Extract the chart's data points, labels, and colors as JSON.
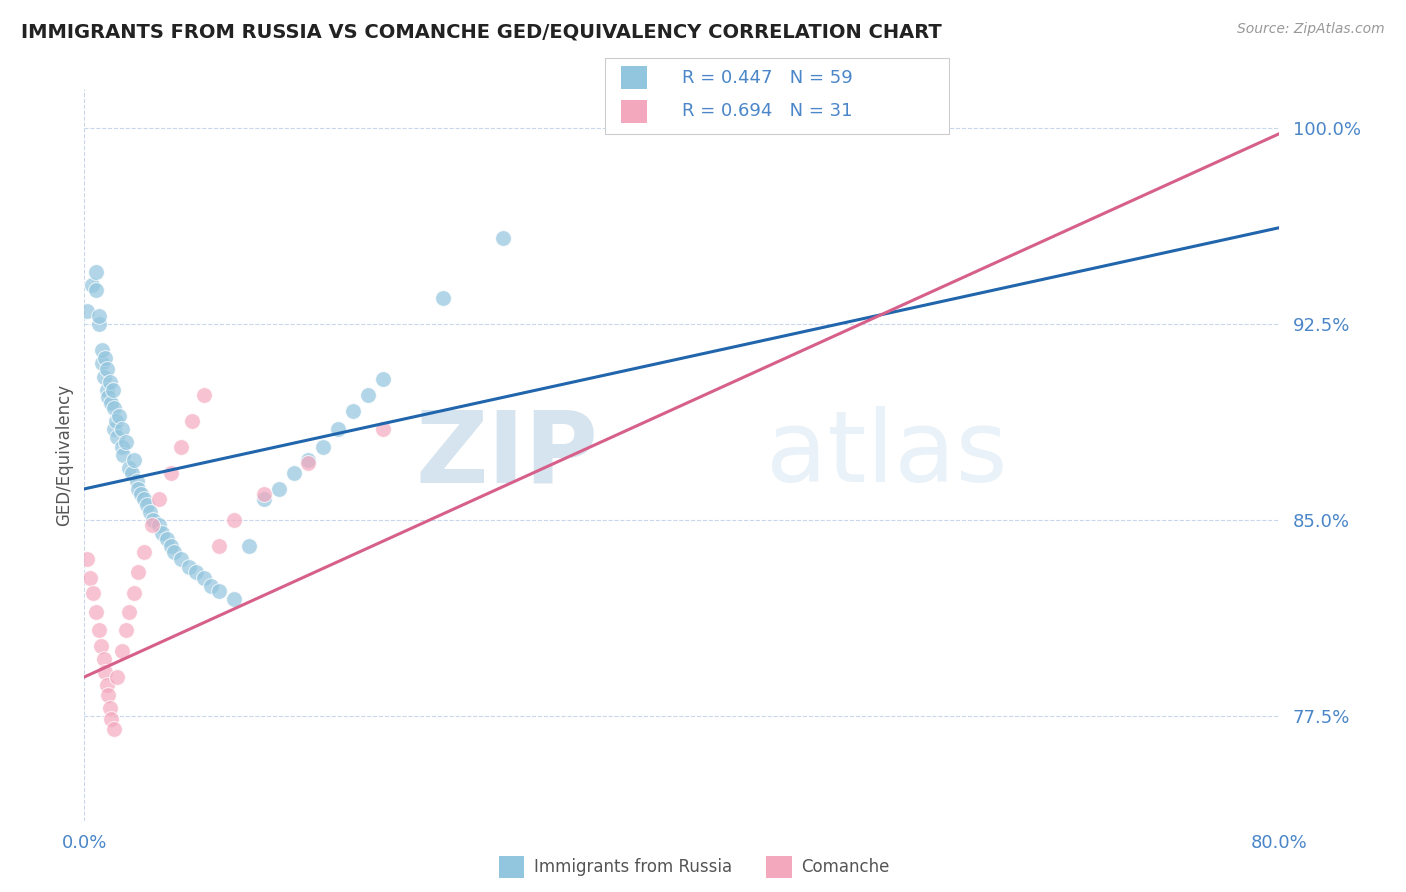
{
  "title": "IMMIGRANTS FROM RUSSIA VS COMANCHE GED/EQUIVALENCY CORRELATION CHART",
  "source": "Source: ZipAtlas.com",
  "ylabel": "GED/Equivalency",
  "xmin": 0.0,
  "xmax": 0.8,
  "ymin": 0.735,
  "ymax": 1.015,
  "yticks": [
    0.775,
    0.85,
    0.925,
    1.0
  ],
  "ytick_labels": [
    "77.5%",
    "85.0%",
    "92.5%",
    "100.0%"
  ],
  "xticks": [
    0.0,
    0.8
  ],
  "xtick_labels": [
    "0.0%",
    "80.0%"
  ],
  "legend_r1": "R = 0.447",
  "legend_n1": "N = 59",
  "legend_r2": "R = 0.694",
  "legend_n2": "N = 31",
  "color_blue": "#92c5de",
  "color_pink": "#f4a8be",
  "line_color_blue": "#2166ac",
  "line_color_pink": "#d6608a",
  "title_color": "#222222",
  "axis_color": "#4a86c8",
  "watermark_zip": "ZIP",
  "watermark_atlas": "atlas",
  "blue_scatter_x": [
    0.002,
    0.005,
    0.008,
    0.008,
    0.01,
    0.01,
    0.012,
    0.012,
    0.013,
    0.014,
    0.015,
    0.015,
    0.016,
    0.017,
    0.018,
    0.019,
    0.02,
    0.02,
    0.021,
    0.022,
    0.023,
    0.025,
    0.025,
    0.026,
    0.028,
    0.03,
    0.032,
    0.033,
    0.035,
    0.036,
    0.038,
    0.04,
    0.042,
    0.044,
    0.046,
    0.05,
    0.052,
    0.055,
    0.058,
    0.06,
    0.065,
    0.07,
    0.075,
    0.08,
    0.085,
    0.09,
    0.1,
    0.11,
    0.12,
    0.13,
    0.14,
    0.15,
    0.16,
    0.17,
    0.18,
    0.19,
    0.2,
    0.24,
    0.28
  ],
  "blue_scatter_y": [
    0.93,
    0.94,
    0.938,
    0.945,
    0.925,
    0.928,
    0.91,
    0.915,
    0.905,
    0.912,
    0.9,
    0.908,
    0.897,
    0.903,
    0.895,
    0.9,
    0.885,
    0.893,
    0.888,
    0.882,
    0.89,
    0.878,
    0.885,
    0.875,
    0.88,
    0.87,
    0.868,
    0.873,
    0.865,
    0.862,
    0.86,
    0.858,
    0.856,
    0.853,
    0.85,
    0.848,
    0.845,
    0.843,
    0.84,
    0.838,
    0.835,
    0.832,
    0.83,
    0.828,
    0.825,
    0.823,
    0.82,
    0.84,
    0.858,
    0.862,
    0.868,
    0.873,
    0.878,
    0.885,
    0.892,
    0.898,
    0.904,
    0.935,
    0.958
  ],
  "pink_scatter_x": [
    0.002,
    0.004,
    0.006,
    0.008,
    0.01,
    0.011,
    0.013,
    0.014,
    0.015,
    0.016,
    0.017,
    0.018,
    0.02,
    0.022,
    0.025,
    0.028,
    0.03,
    0.033,
    0.036,
    0.04,
    0.045,
    0.05,
    0.058,
    0.065,
    0.072,
    0.08,
    0.09,
    0.1,
    0.12,
    0.15,
    0.2
  ],
  "pink_scatter_y": [
    0.835,
    0.828,
    0.822,
    0.815,
    0.808,
    0.802,
    0.797,
    0.792,
    0.787,
    0.783,
    0.778,
    0.774,
    0.77,
    0.79,
    0.8,
    0.808,
    0.815,
    0.822,
    0.83,
    0.838,
    0.848,
    0.858,
    0.868,
    0.878,
    0.888,
    0.898,
    0.84,
    0.85,
    0.86,
    0.872,
    0.885
  ],
  "blue_line_x": [
    0.0,
    0.8
  ],
  "blue_line_y": [
    0.862,
    0.962
  ],
  "pink_line_x": [
    0.0,
    0.8
  ],
  "pink_line_y": [
    0.79,
    0.998
  ]
}
